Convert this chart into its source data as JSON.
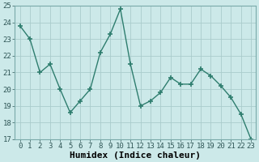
{
  "x": [
    0,
    1,
    2,
    3,
    4,
    5,
    6,
    7,
    8,
    9,
    10,
    11,
    12,
    13,
    14,
    15,
    16,
    17,
    18,
    19,
    20,
    21,
    22,
    23
  ],
  "y": [
    23.8,
    23.0,
    21.0,
    21.5,
    20.0,
    18.6,
    19.3,
    20.0,
    22.2,
    23.3,
    24.8,
    21.5,
    19.0,
    19.3,
    19.8,
    20.7,
    20.3,
    20.3,
    21.2,
    20.8,
    20.2,
    19.5,
    18.5,
    17.0
  ],
  "xlabel": "Humidex (Indice chaleur)",
  "ylim": [
    17,
    25
  ],
  "yticks": [
    17,
    18,
    19,
    20,
    21,
    22,
    23,
    24,
    25
  ],
  "xticks": [
    0,
    1,
    2,
    3,
    4,
    5,
    6,
    7,
    8,
    9,
    10,
    11,
    12,
    13,
    14,
    15,
    16,
    17,
    18,
    19,
    20,
    21,
    22,
    23
  ],
  "line_color": "#2e7d6e",
  "marker": "+",
  "marker_size": 5,
  "bg_color": "#cce9e9",
  "grid_color": "#aacccc",
  "xlabel_fontsize": 8,
  "tick_fontsize": 6.5
}
